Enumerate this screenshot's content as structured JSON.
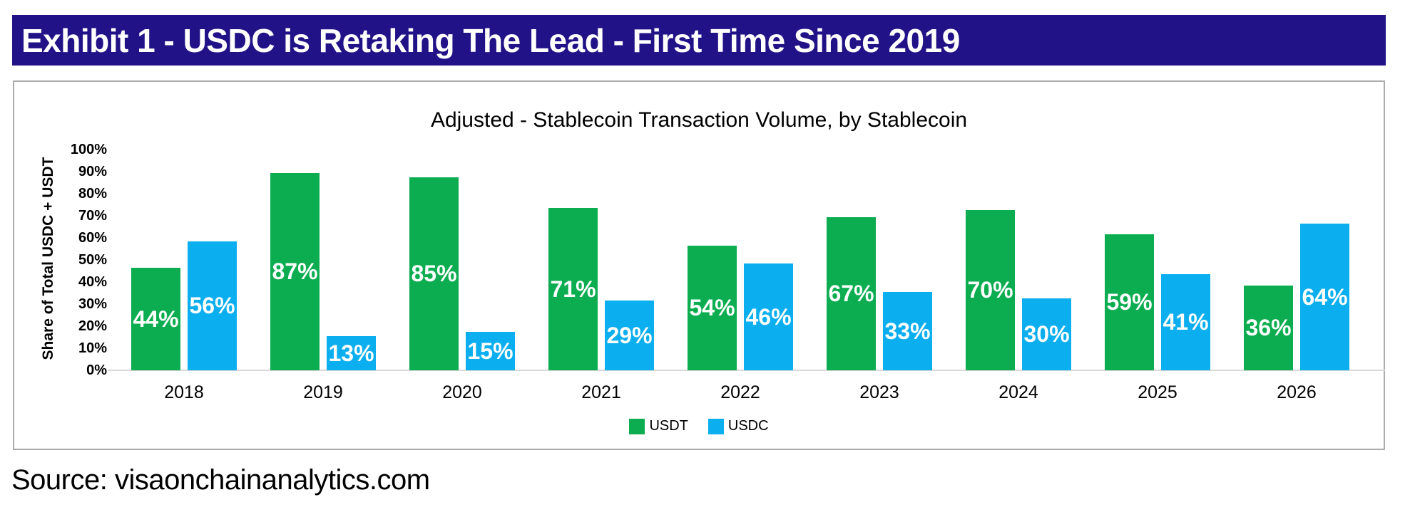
{
  "banner": {
    "title": "Exhibit 1 - USDC is Retaking The Lead - First Time Since 2019",
    "background_color": "#221287",
    "text_color": "#ffffff"
  },
  "source": {
    "text": "Source: visaonchainanalytics.com"
  },
  "colors": {
    "usdt_green": "#0CAD50",
    "usdc_blue": "#0BAEEF",
    "card_border": "#ABABAB",
    "axis_line": "#D9D9D9"
  },
  "chart_data": {
    "type": "bar",
    "title": "Adjusted - Stablecoin Transaction Volume, by Stablecoin",
    "xlabel": "",
    "ylabel": "Share of Total USDC + USDT",
    "categories": [
      "2018",
      "2019",
      "2020",
      "2021",
      "2022",
      "2023",
      "2024",
      "2025",
      "2026"
    ],
    "series": [
      {
        "name": "USDT",
        "color": "#0CAD50",
        "values": [
          44,
          87,
          85,
          71,
          54,
          67,
          70,
          59,
          36
        ]
      },
      {
        "name": "USDC",
        "color": "#0BAEEF",
        "values": [
          56,
          13,
          15,
          29,
          46,
          33,
          30,
          41,
          64
        ]
      }
    ],
    "ylim": [
      0,
      100
    ],
    "ytick_step": 10,
    "value_suffix": "%",
    "grid": false,
    "legend_position": "bottom"
  }
}
